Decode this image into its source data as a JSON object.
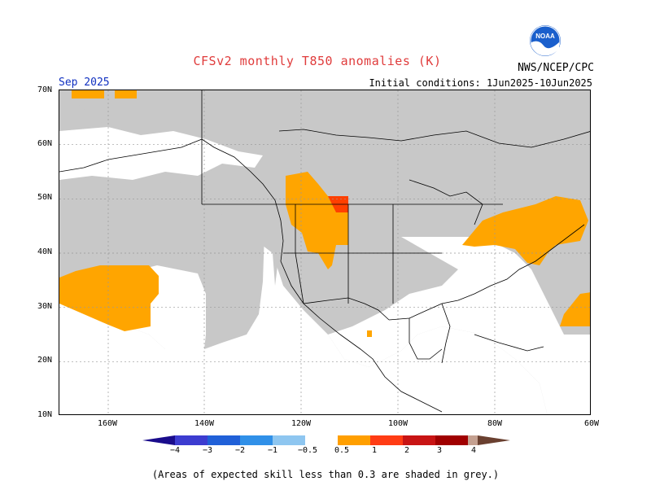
{
  "header": {
    "title": "CFSv2 monthly T850 anomalies (K)",
    "agency": "NWS/NCEP/CPC",
    "month": "Sep 2025",
    "initial_conditions": "Initial conditions: 1Jun2025-10Jun2025",
    "logo_text": "NOAA"
  },
  "axes": {
    "lat_labels": [
      "70N",
      "60N",
      "50N",
      "40N",
      "30N",
      "20N",
      "10N"
    ],
    "lon_labels": [
      "160W",
      "140W",
      "120W",
      "100W",
      "80W",
      "60W"
    ]
  },
  "colorbar": {
    "labels": [
      "−4",
      "−3",
      "−2",
      "−1",
      "−0.5",
      "0.5",
      "1",
      "2",
      "3",
      "4"
    ],
    "colors": {
      "lt_-4": "#1a0c8c",
      "-4_-3": "#3c3cd0",
      "-3_-2": "#2060d8",
      "-2_-1": "#3090e8",
      "-1_-0.5": "#8ec6f0",
      "-0.5_0.5": "#ffffff",
      "0.5_1": "#ff9f00",
      "1_2": "#ff3c14",
      "2_3": "#c81414",
      "3_4": "#a00000",
      "gt_4": "#c4a090",
      "gt_4b": "#6a4030"
    }
  },
  "map_colors": {
    "low_skill_grey": "#c8c8c8",
    "warm_anomaly": "#ffa500",
    "strong_warm_anomaly": "#ff4000",
    "gridline": "#999999",
    "coastline": "#000000"
  },
  "footnote": "(Areas of expected skill less than 0.3 are shaded in grey.)"
}
